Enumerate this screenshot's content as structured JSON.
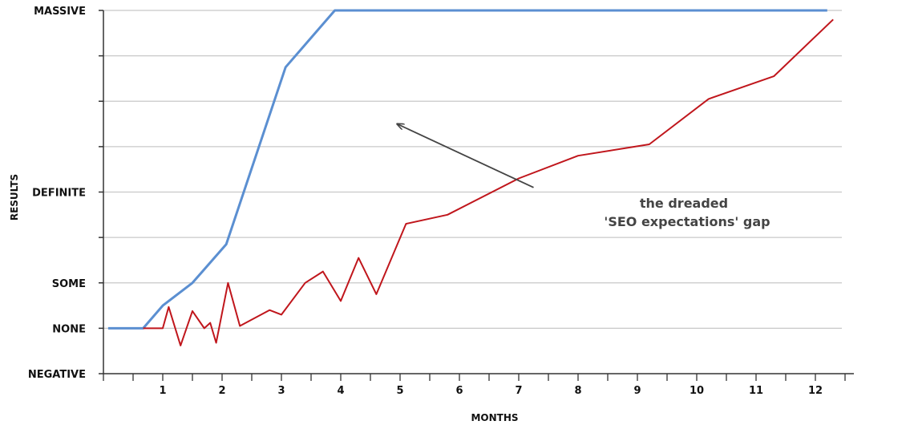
{
  "chart_data": {
    "type": "line",
    "xlabel": "MONTHS",
    "ylabel": "RESULTS",
    "xlim": [
      0,
      12.5
    ],
    "ylim": [
      -1,
      7
    ],
    "x_ticks": [
      "1",
      "2",
      "3",
      "4",
      "5",
      "6",
      "7",
      "8",
      "9",
      "10",
      "11",
      "12"
    ],
    "y_ticks": [
      {
        "value": -1,
        "label": "NEGATIVE"
      },
      {
        "value": 0,
        "label": "NONE"
      },
      {
        "value": 1,
        "label": "SOME"
      },
      {
        "value": 2,
        "label": ""
      },
      {
        "value": 3,
        "label": "DEFINITE"
      },
      {
        "value": 4,
        "label": ""
      },
      {
        "value": 5,
        "label": ""
      },
      {
        "value": 6,
        "label": ""
      },
      {
        "value": 7,
        "label": "MASSIVE"
      }
    ],
    "grid": true,
    "series": [
      {
        "color": "#5b8fd1",
        "x": [
          0.08,
          0.67,
          1.0,
          1.5,
          2.07,
          3.07,
          3.9,
          12.2
        ],
        "y": [
          0,
          0,
          0.5,
          1.0,
          1.85,
          5.75,
          7.0,
          7.0
        ]
      },
      {
        "color": "#c0161c",
        "x": [
          0.67,
          1.0,
          1.1,
          1.3,
          1.5,
          1.7,
          1.8,
          1.9,
          2.1,
          2.3,
          2.8,
          3.0,
          3.4,
          3.7,
          4.0,
          4.3,
          4.6,
          5.1,
          5.8,
          7.0,
          8.0,
          9.2,
          10.2,
          11.3,
          12.3
        ],
        "y": [
          0,
          0,
          0.47,
          -0.38,
          0.38,
          0,
          0.12,
          -0.32,
          1.0,
          0.05,
          0.4,
          0.3,
          1.0,
          1.25,
          0.6,
          1.55,
          0.75,
          2.3,
          2.5,
          3.3,
          3.8,
          4.05,
          5.05,
          5.55,
          6.8
        ]
      }
    ],
    "annotation": {
      "lines": [
        "the dreaded",
        "'SEO expectations' gap"
      ],
      "arrow_from": [
        7.25,
        3.1
      ],
      "arrow_to": [
        4.95,
        4.5
      ],
      "color": "#444444"
    }
  }
}
